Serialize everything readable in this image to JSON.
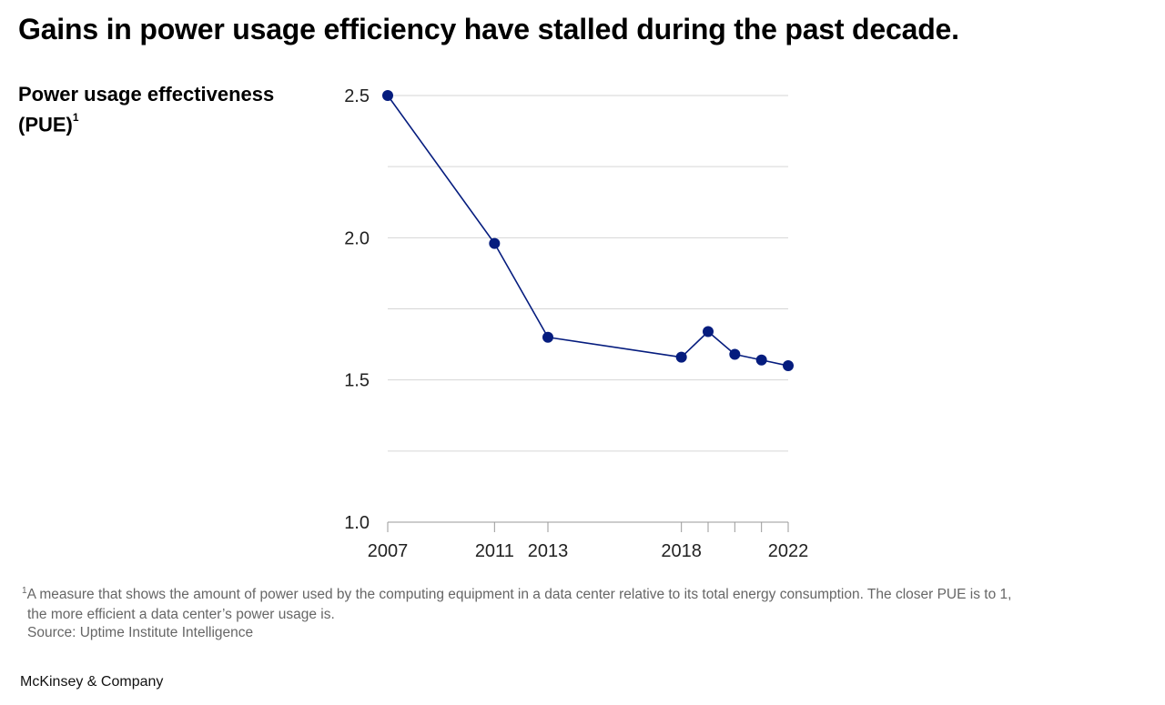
{
  "title": "Gains in power usage efficiency have stalled during the past decade.",
  "ylabel_main": "Power usage effectiveness (PUE)",
  "ylabel_sup": "1",
  "footnote": {
    "marker": "1",
    "line1": "A measure that shows the amount of power used by the computing equipment in a data center relative to its total energy consumption. The closer PUE is to 1,",
    "line2": "the more efficient a data center’s power usage is.",
    "source": "Source: Uptime Institute Intelligence"
  },
  "brand": "McKinsey & Company",
  "colors": {
    "line": "#051c7e",
    "marker": "#051c7e",
    "grid": "#d6d6d6",
    "axis": "#999999"
  },
  "chart_data": {
    "type": "line",
    "title": "Gains in power usage efficiency have stalled during the past decade.",
    "xlabel": "",
    "ylabel": "Power usage effectiveness (PUE)",
    "x": [
      2007,
      2011,
      2013,
      2018,
      2019,
      2020,
      2021,
      2022
    ],
    "series": [
      {
        "name": "PUE",
        "values": [
          2.5,
          1.98,
          1.65,
          1.58,
          1.67,
          1.59,
          1.57,
          1.55
        ]
      }
    ],
    "xlim": [
      2007,
      2022
    ],
    "ylim": [
      1.0,
      2.5
    ],
    "yticks": [
      1.0,
      1.5,
      2.0,
      2.5
    ],
    "ytick_labels": [
      "1.0",
      "1.5",
      "2.0",
      "2.5"
    ],
    "ygrid": [
      1.25,
      1.5,
      1.75,
      2.0,
      2.25,
      2.5
    ],
    "xticks": [
      2007,
      2011,
      2013,
      2018,
      2019,
      2020,
      2021,
      2022
    ],
    "xtick_labels": [
      "2007",
      "2011",
      "2013",
      "2018",
      "2022"
    ],
    "labeled_xticks": [
      2007,
      2011,
      2013,
      2018,
      2022
    ],
    "grid": true
  }
}
